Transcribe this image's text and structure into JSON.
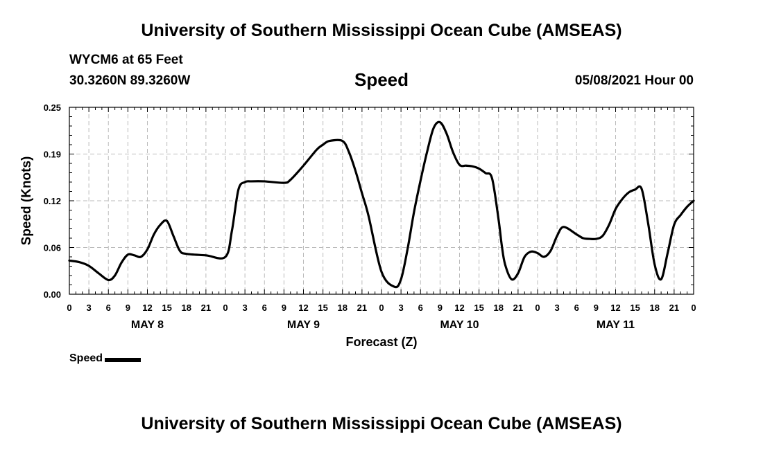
{
  "header": {
    "top_title": "University of Southern Mississippi Ocean Cube (AMSEAS)",
    "station": "WYCM6 at 65 Feet",
    "coords": "30.3260N  89.3260W",
    "date": "05/08/2021 Hour 00",
    "bottom_title": "University of Southern Mississippi Ocean Cube (AMSEAS)"
  },
  "legend": {
    "label": "Speed"
  },
  "chart_data": {
    "type": "line",
    "title": "Speed",
    "xlabel": "Forecast (Z)",
    "ylabel": "Speed (Knots)",
    "xlim": [
      0,
      96
    ],
    "ylim": [
      0,
      0.25
    ],
    "y_ticks": [
      "0.00",
      "0.06",
      "0.12",
      "0.19",
      "0.25"
    ],
    "y_tick_values": [
      0,
      0.0625,
      0.125,
      0.1875,
      0.25
    ],
    "x_ticks": [
      "0",
      "3",
      "6",
      "9",
      "12",
      "15",
      "18",
      "21",
      "0",
      "3",
      "6",
      "9",
      "12",
      "15",
      "18",
      "21",
      "0",
      "3",
      "6",
      "9",
      "12",
      "15",
      "18",
      "21",
      "0",
      "3",
      "6",
      "9",
      "12",
      "15",
      "18",
      "21",
      "0"
    ],
    "day_labels": [
      {
        "label": "MAY 8",
        "hour": 12
      },
      {
        "label": "MAY 9",
        "hour": 36
      },
      {
        "label": "MAY 10",
        "hour": 60
      },
      {
        "label": "MAY 11",
        "hour": 84
      }
    ],
    "grid": true,
    "series": [
      {
        "name": "Speed",
        "x": [
          0,
          1.5,
          3,
          4.5,
          6,
          7,
          8,
          9,
          10,
          11,
          12,
          13,
          14,
          15,
          16,
          17,
          18,
          21,
          24,
          25,
          26,
          27,
          28,
          30,
          33,
          34,
          36,
          38,
          39,
          40,
          42,
          43,
          44,
          45,
          46,
          48,
          50,
          51,
          52,
          53,
          54,
          55,
          56,
          57,
          58,
          59,
          60,
          61,
          62,
          63,
          64,
          65,
          66,
          66.5,
          67,
          68,
          69,
          70,
          71,
          72,
          73,
          74,
          75,
          76,
          78,
          79,
          80,
          81,
          82,
          83,
          84,
          85,
          86,
          87,
          88,
          89,
          90,
          91,
          92,
          93,
          94,
          95,
          96
        ],
        "values": [
          0.045,
          0.043,
          0.038,
          0.028,
          0.019,
          0.025,
          0.042,
          0.053,
          0.052,
          0.05,
          0.06,
          0.08,
          0.093,
          0.098,
          0.078,
          0.058,
          0.054,
          0.052,
          0.05,
          0.085,
          0.14,
          0.15,
          0.151,
          0.151,
          0.149,
          0.153,
          0.172,
          0.193,
          0.2,
          0.205,
          0.205,
          0.19,
          0.165,
          0.135,
          0.105,
          0.03,
          0.01,
          0.02,
          0.06,
          0.11,
          0.152,
          0.19,
          0.222,
          0.23,
          0.215,
          0.19,
          0.173,
          0.172,
          0.171,
          0.168,
          0.162,
          0.155,
          0.1,
          0.065,
          0.04,
          0.02,
          0.028,
          0.05,
          0.057,
          0.055,
          0.05,
          0.058,
          0.078,
          0.09,
          0.08,
          0.075,
          0.074,
          0.074,
          0.078,
          0.093,
          0.114,
          0.127,
          0.136,
          0.14,
          0.141,
          0.095,
          0.04,
          0.02,
          0.055,
          0.093,
          0.106,
          0.117,
          0.125
        ]
      }
    ]
  }
}
